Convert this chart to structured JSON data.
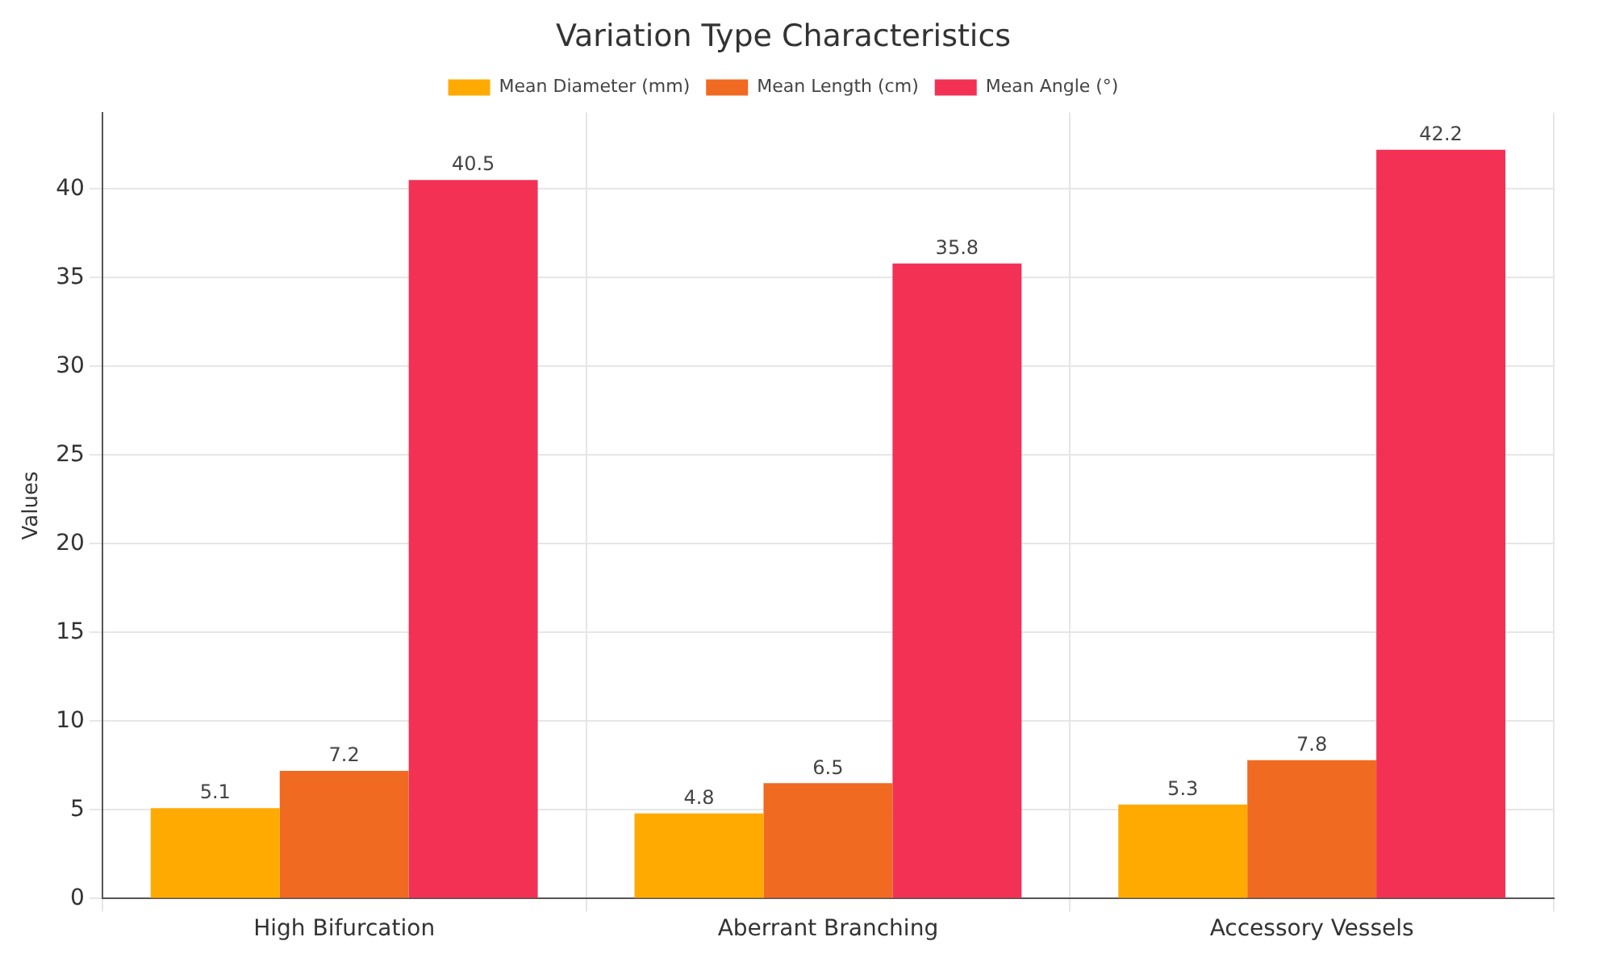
{
  "chart_data": {
    "type": "bar",
    "title": "Variation Type Characteristics",
    "ylabel": "Values",
    "categories": [
      "High Bifurcation",
      "Aberrant Branching",
      "Accessory Vessels"
    ],
    "series": [
      {
        "name": "Mean Diameter (mm)",
        "color": "#ffaa00",
        "values": [
          5.1,
          4.8,
          5.3
        ]
      },
      {
        "name": "Mean Length (cm)",
        "color": "#f06a22",
        "values": [
          7.2,
          6.5,
          7.8
        ]
      },
      {
        "name": "Mean Angle (°)",
        "color": "#f23155",
        "values": [
          40.5,
          35.8,
          42.2
        ]
      }
    ],
    "ylim": [
      0,
      44.3
    ],
    "yticks": [
      0,
      5,
      10,
      15,
      20,
      25,
      30,
      35,
      40
    ],
    "grid": true,
    "legend": "top",
    "data_labels": true
  }
}
